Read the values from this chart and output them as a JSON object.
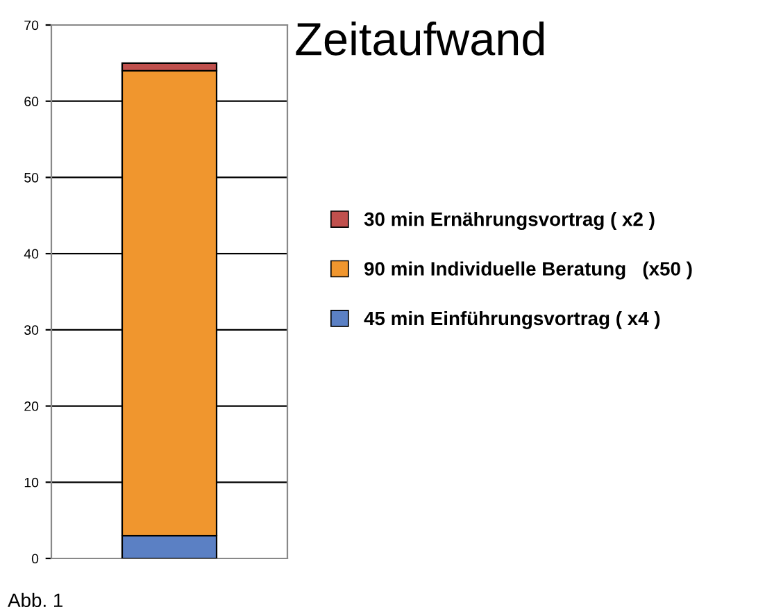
{
  "chart_data": {
    "type": "bar",
    "title": "Zeitaufwand",
    "stacked": true,
    "categories": [
      null
    ],
    "series": [
      {
        "name": "45 min Einführungsvortrag ( x4 )",
        "color": "#5b80c4",
        "values": [
          3
        ]
      },
      {
        "name": "90 min Individuelle Beratung   (x50 )",
        "color": "#f0962e",
        "values": [
          61
        ]
      },
      {
        "name": "30 min Ernährungsvortrag ( x2 )",
        "color": "#c0504d",
        "values": [
          1
        ]
      }
    ],
    "ylim": [
      0,
      70
    ],
    "yticks": [
      0,
      10,
      20,
      30,
      40,
      50,
      60,
      70
    ],
    "grid": "y",
    "legend": "right",
    "annotations": [
      "Abb. 1"
    ]
  }
}
